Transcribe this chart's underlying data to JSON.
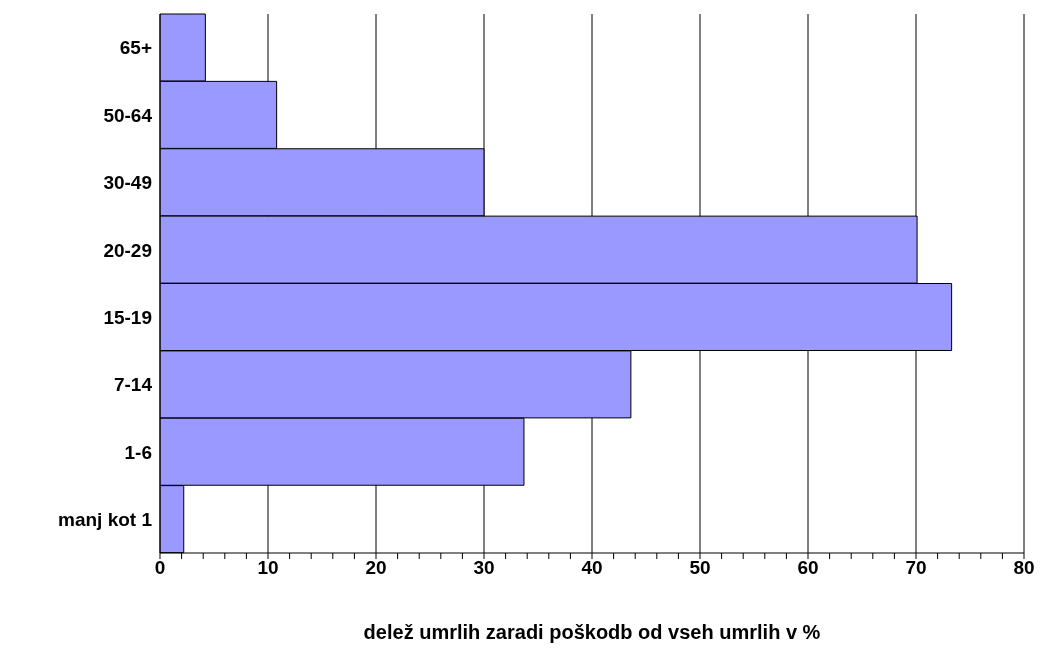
{
  "chart_data": {
    "type": "bar",
    "orientation": "horizontal",
    "xlabel": "delež umrlih zaradi poškodb od vseh umrlih v %",
    "categories": [
      "65+",
      "50-64",
      "30-49",
      "20-29",
      "15-19",
      "7-14",
      "1-6",
      "manj kot 1"
    ],
    "values": [
      4.2,
      10.8,
      30.0,
      70.1,
      73.3,
      43.6,
      33.7,
      2.2
    ],
    "color": "#9999ff",
    "xlim": [
      0,
      80
    ],
    "xticks": [
      0,
      {
        "value": 2,
        "label": null
      },
      {
        "value": 4,
        "label": null
      },
      {
        "value": 6,
        "label": null
      },
      {
        "value": 8,
        "label": null
      },
      10,
      {
        "value": 12,
        "label": null
      },
      {
        "value": 14,
        "label": null
      },
      {
        "value": 16,
        "label": null
      },
      {
        "value": 18,
        "label": null
      },
      20,
      {
        "value": 22,
        "label": null
      },
      {
        "value": 24,
        "label": null
      },
      {
        "value": 26,
        "label": null
      },
      {
        "value": 28,
        "label": null
      },
      30,
      {
        "value": 32,
        "label": null
      },
      {
        "value": 34,
        "label": null
      },
      {
        "value": 36,
        "label": null
      },
      {
        "value": 38,
        "label": null
      },
      40,
      {
        "value": 42,
        "label": null
      },
      {
        "value": 44,
        "label": null
      },
      {
        "value": 46,
        "label": null
      },
      {
        "value": 48,
        "label": null
      },
      50,
      {
        "value": 52,
        "label": null
      },
      {
        "value": 54,
        "label": null
      },
      {
        "value": 56,
        "label": null
      },
      {
        "value": 58,
        "label": null
      },
      60,
      {
        "value": 62,
        "label": null
      },
      {
        "value": 64,
        "label": null
      },
      {
        "value": 66,
        "label": null
      },
      {
        "value": 68,
        "label": null
      },
      70,
      {
        "value": 72,
        "label": null
      },
      {
        "value": 74,
        "label": null
      },
      {
        "value": 76,
        "label": null
      },
      {
        "value": 78,
        "label": null
      },
      80
    ],
    "grid": "x"
  }
}
